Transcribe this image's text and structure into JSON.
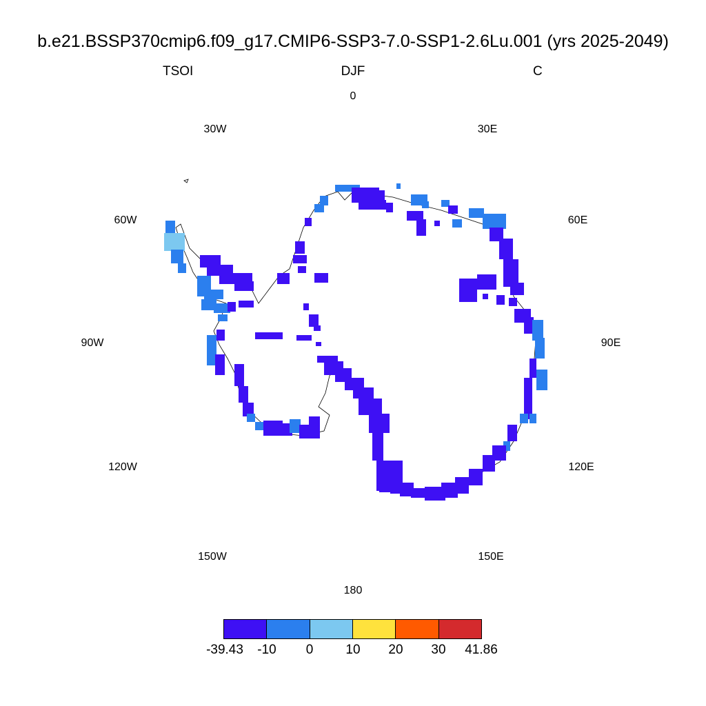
{
  "title": "b.e21.BSSP370cmip6.f09_g17.CMIP6-SSP3-7.0-SSP1-2.6Lu.001 (yrs 2025-2049)",
  "variable": "TSOI",
  "season": "DJF",
  "units": "C",
  "longitude_labels": [
    "0",
    "30E",
    "60E",
    "90E",
    "120E",
    "150E",
    "180",
    "150W",
    "120W",
    "90W",
    "60W",
    "30W"
  ],
  "colorbar": {
    "labels": [
      "-39.43",
      "-10",
      "0",
      "10",
      "20",
      "30",
      "41.86"
    ],
    "colors": [
      "#3e10f4",
      "#2b7fee",
      "#7cc8f0",
      "#fee23d",
      "#ff5a00",
      "#d42a2d"
    ]
  },
  "colors": {
    "deep_blue": "#3e10f4",
    "mid_blue": "#2b7fee",
    "light_blue": "#7cc8f0",
    "coastline": "#000000"
  }
}
